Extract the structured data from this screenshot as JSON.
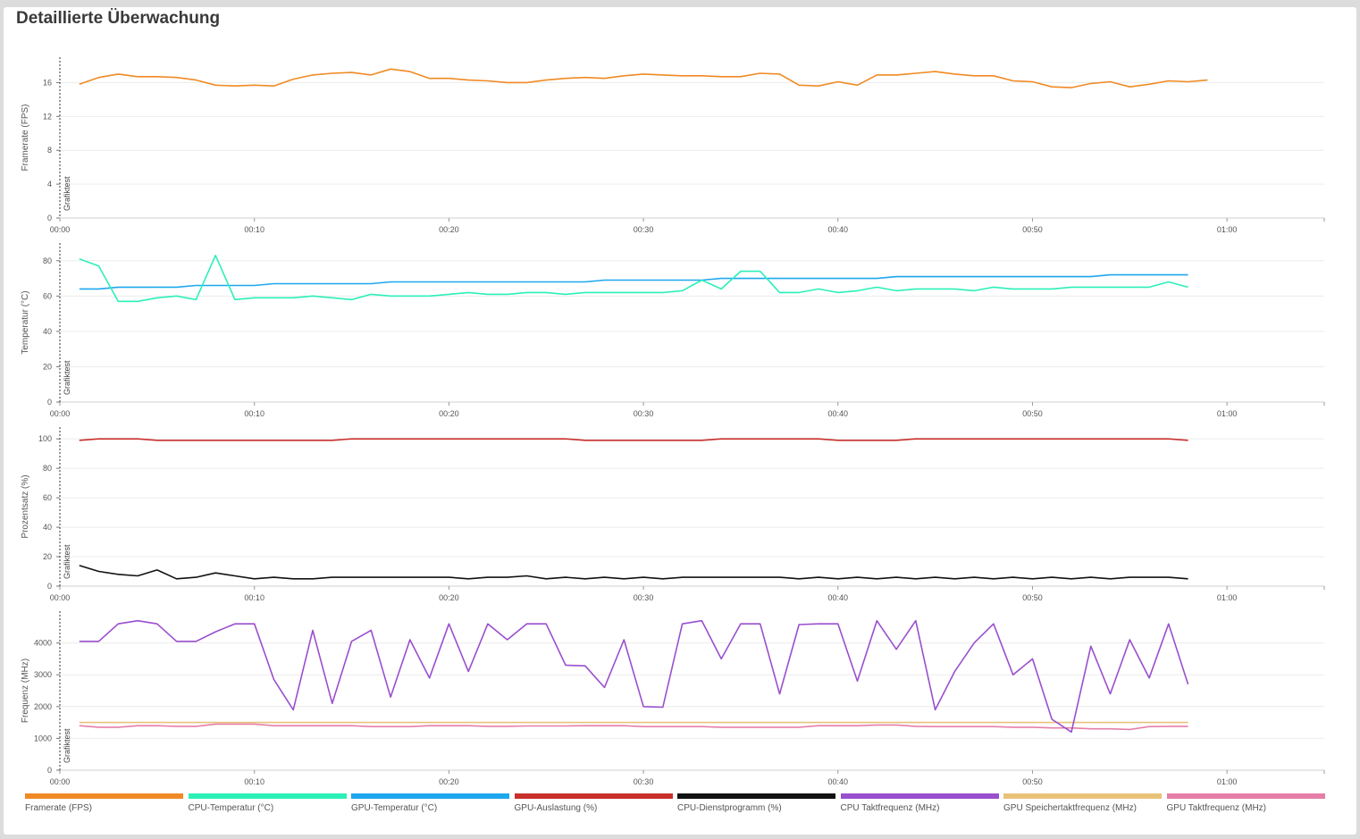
{
  "page": {
    "title": "Detaillierte Überwachung"
  },
  "chart_data": [
    {
      "type": "line",
      "ylabel": "Framerate (FPS)",
      "marker_label": "Grafiktest",
      "ylim": [
        0,
        19
      ],
      "yticks": [
        0,
        4,
        8,
        12,
        16
      ],
      "xlim": [
        0,
        65
      ],
      "xticks": [
        "00:00",
        "00:10",
        "00:20",
        "00:30",
        "00:40",
        "00:50",
        "01:00"
      ],
      "grid": true,
      "series": [
        {
          "name": "Framerate (FPS)",
          "color": "#f08a24",
          "x": [
            1,
            2,
            3,
            4,
            5,
            6,
            7,
            8,
            9,
            10,
            11,
            12,
            13,
            14,
            15,
            16,
            17,
            18,
            19,
            20,
            21,
            22,
            23,
            24,
            25,
            26,
            27,
            28,
            29,
            30,
            31,
            32,
            33,
            34,
            35,
            36,
            37,
            38,
            39,
            40,
            41,
            42,
            43,
            44,
            45,
            46,
            47,
            48,
            49,
            50,
            51,
            52,
            53,
            54,
            55,
            56,
            57,
            58,
            59
          ],
          "values": [
            15.8,
            16.6,
            17.0,
            16.7,
            16.7,
            16.6,
            16.3,
            15.7,
            15.6,
            15.7,
            15.6,
            16.4,
            16.9,
            17.1,
            17.2,
            16.9,
            17.6,
            17.3,
            16.5,
            16.5,
            16.3,
            16.2,
            16.0,
            16.0,
            16.3,
            16.5,
            16.6,
            16.5,
            16.8,
            17.0,
            16.9,
            16.8,
            16.8,
            16.7,
            16.7,
            17.1,
            17.0,
            15.7,
            15.6,
            16.1,
            15.7,
            16.9,
            16.9,
            17.1,
            17.3,
            17.0,
            16.8,
            16.8,
            16.2,
            16.1,
            15.5,
            15.4,
            15.9,
            16.1,
            15.5,
            15.8,
            16.2,
            16.1,
            16.3
          ]
        }
      ]
    },
    {
      "type": "line",
      "ylabel": "Temperatur (°C)",
      "marker_label": "Grafiktest",
      "ylim": [
        0,
        90
      ],
      "yticks": [
        0,
        20,
        40,
        60,
        80
      ],
      "xlim": [
        0,
        65
      ],
      "xticks": [
        "00:00",
        "00:10",
        "00:20",
        "00:30",
        "00:40",
        "00:50",
        "01:00"
      ],
      "grid": true,
      "series": [
        {
          "name": "GPU-Temperatur (°C)",
          "color": "#1ea7ee",
          "x": [
            1,
            2,
            3,
            4,
            5,
            6,
            7,
            8,
            9,
            10,
            11,
            12,
            13,
            14,
            15,
            16,
            17,
            18,
            19,
            20,
            21,
            22,
            23,
            24,
            25,
            26,
            27,
            28,
            29,
            30,
            31,
            32,
            33,
            34,
            35,
            36,
            37,
            38,
            39,
            40,
            41,
            42,
            43,
            44,
            45,
            46,
            47,
            48,
            49,
            50,
            51,
            52,
            53,
            54,
            55,
            56,
            57,
            58
          ],
          "values": [
            64,
            64,
            65,
            65,
            65,
            65,
            66,
            66,
            66,
            66,
            67,
            67,
            67,
            67,
            67,
            67,
            68,
            68,
            68,
            68,
            68,
            68,
            68,
            68,
            68,
            68,
            68,
            69,
            69,
            69,
            69,
            69,
            69,
            70,
            70,
            70,
            70,
            70,
            70,
            70,
            70,
            70,
            71,
            71,
            71,
            71,
            71,
            71,
            71,
            71,
            71,
            71,
            71,
            72,
            72,
            72,
            72,
            72
          ]
        },
        {
          "name": "CPU-Temperatur (°C)",
          "color": "#2bf0b8",
          "x": [
            1,
            2,
            3,
            4,
            5,
            6,
            7,
            8,
            9,
            10,
            11,
            12,
            13,
            14,
            15,
            16,
            17,
            18,
            19,
            20,
            21,
            22,
            23,
            24,
            25,
            26,
            27,
            28,
            29,
            30,
            31,
            32,
            33,
            34,
            35,
            36,
            37,
            38,
            39,
            40,
            41,
            42,
            43,
            44,
            45,
            46,
            47,
            48,
            49,
            50,
            51,
            52,
            53,
            54,
            55,
            56,
            57,
            58
          ],
          "values": [
            81,
            77,
            57,
            57,
            59,
            60,
            58,
            83,
            58,
            59,
            59,
            59,
            60,
            59,
            58,
            61,
            60,
            60,
            60,
            61,
            62,
            61,
            61,
            62,
            62,
            61,
            62,
            62,
            62,
            62,
            62,
            63,
            69,
            64,
            74,
            74,
            62,
            62,
            64,
            62,
            63,
            65,
            63,
            64,
            64,
            64,
            63,
            65,
            64,
            64,
            64,
            65,
            65,
            65,
            65,
            65,
            68,
            65
          ]
        }
      ]
    },
    {
      "type": "line",
      "ylabel": "Prozentsatz (%)",
      "marker_label": "Grafiktest",
      "ylim": [
        0,
        108
      ],
      "yticks": [
        0,
        20,
        40,
        60,
        80,
        100
      ],
      "xlim": [
        0,
        65
      ],
      "xticks": [
        "00:00",
        "00:10",
        "00:20",
        "00:30",
        "00:40",
        "00:50",
        "01:00"
      ],
      "grid": true,
      "series": [
        {
          "name": "GPU-Auslastung (%)",
          "color": "#c8302c",
          "x": [
            1,
            2,
            3,
            4,
            5,
            6,
            7,
            8,
            9,
            10,
            11,
            12,
            13,
            14,
            15,
            16,
            17,
            18,
            19,
            20,
            21,
            22,
            23,
            24,
            25,
            26,
            27,
            28,
            29,
            30,
            31,
            32,
            33,
            34,
            35,
            36,
            37,
            38,
            39,
            40,
            41,
            42,
            43,
            44,
            45,
            46,
            47,
            48,
            49,
            50,
            51,
            52,
            53,
            54,
            55,
            56,
            57,
            58
          ],
          "values": [
            99,
            100,
            100,
            100,
            99,
            99,
            99,
            99,
            99,
            99,
            99,
            99,
            99,
            99,
            100,
            100,
            100,
            100,
            100,
            100,
            100,
            100,
            100,
            100,
            100,
            100,
            99,
            99,
            99,
            99,
            99,
            99,
            99,
            100,
            100,
            100,
            100,
            100,
            100,
            99,
            99,
            99,
            99,
            100,
            100,
            100,
            100,
            100,
            100,
            100,
            100,
            100,
            100,
            100,
            100,
            100,
            100,
            99
          ]
        },
        {
          "name": "CPU-Dienstprogramm (%)",
          "color": "#111111",
          "x": [
            1,
            2,
            3,
            4,
            5,
            6,
            7,
            8,
            9,
            10,
            11,
            12,
            13,
            14,
            15,
            16,
            17,
            18,
            19,
            20,
            21,
            22,
            23,
            24,
            25,
            26,
            27,
            28,
            29,
            30,
            31,
            32,
            33,
            34,
            35,
            36,
            37,
            38,
            39,
            40,
            41,
            42,
            43,
            44,
            45,
            46,
            47,
            48,
            49,
            50,
            51,
            52,
            53,
            54,
            55,
            56,
            57,
            58
          ],
          "values": [
            14,
            10,
            8,
            7,
            11,
            5,
            6,
            9,
            7,
            5,
            6,
            5,
            5,
            6,
            6,
            6,
            6,
            6,
            6,
            6,
            5,
            6,
            6,
            7,
            5,
            6,
            5,
            6,
            5,
            6,
            5,
            6,
            6,
            6,
            6,
            6,
            6,
            5,
            6,
            5,
            6,
            5,
            6,
            5,
            6,
            5,
            6,
            5,
            6,
            5,
            6,
            5,
            6,
            5,
            6,
            6,
            6,
            5
          ]
        }
      ]
    },
    {
      "type": "line",
      "ylabel": "Frequenz (MHz)",
      "marker_label": "Grafiktest",
      "ylim": [
        0,
        5000
      ],
      "yticks": [
        0,
        1000,
        2000,
        3000,
        4000
      ],
      "xlim": [
        0,
        65
      ],
      "xticks": [
        "00:00",
        "00:10",
        "00:20",
        "00:30",
        "00:40",
        "00:50",
        "01:00"
      ],
      "grid": true,
      "series": [
        {
          "name": "GPU Speichertaktfrequenz (MHz)",
          "color": "#e9c27a",
          "x": [
            1,
            58
          ],
          "values": [
            1500,
            1500
          ]
        },
        {
          "name": "GPU Taktfrequenz (MHz)",
          "color": "#e67fa8",
          "x": [
            1,
            2,
            3,
            4,
            5,
            6,
            7,
            8,
            9,
            10,
            11,
            12,
            13,
            14,
            15,
            16,
            17,
            18,
            19,
            20,
            21,
            22,
            23,
            24,
            25,
            26,
            27,
            28,
            29,
            30,
            31,
            32,
            33,
            34,
            35,
            36,
            37,
            38,
            39,
            40,
            41,
            42,
            43,
            44,
            45,
            46,
            47,
            48,
            49,
            50,
            51,
            52,
            53,
            54,
            55,
            56,
            57,
            58
          ],
          "values": [
            1400,
            1350,
            1350,
            1400,
            1400,
            1380,
            1380,
            1450,
            1450,
            1450,
            1400,
            1400,
            1400,
            1400,
            1400,
            1370,
            1370,
            1370,
            1400,
            1400,
            1400,
            1380,
            1380,
            1390,
            1390,
            1390,
            1400,
            1400,
            1400,
            1370,
            1370,
            1370,
            1370,
            1350,
            1350,
            1350,
            1350,
            1350,
            1400,
            1400,
            1400,
            1420,
            1420,
            1380,
            1370,
            1370,
            1370,
            1370,
            1350,
            1350,
            1330,
            1330,
            1300,
            1300,
            1280,
            1370,
            1380,
            1380
          ]
        },
        {
          "name": "CPU Taktfrequenz (MHz)",
          "color": "#9a4fce",
          "x": [
            1,
            2,
            3,
            4,
            5,
            6,
            7,
            8,
            9,
            10,
            11,
            12,
            13,
            14,
            15,
            16,
            17,
            18,
            19,
            20,
            21,
            22,
            23,
            24,
            25,
            26,
            27,
            28,
            29,
            30,
            31,
            32,
            33,
            34,
            35,
            36,
            37,
            38,
            39,
            40,
            41,
            42,
            43,
            44,
            45,
            46,
            47,
            48,
            49,
            50,
            51,
            52,
            53,
            54,
            55,
            56,
            57,
            58
          ],
          "values": [
            4050,
            4050,
            4600,
            4700,
            4600,
            4050,
            4050,
            4350,
            4600,
            4600,
            2850,
            1900,
            4400,
            2100,
            4050,
            4400,
            2300,
            4100,
            2900,
            4600,
            3100,
            4600,
            4100,
            4600,
            4600,
            3300,
            3280,
            2600,
            4100,
            2000,
            1980,
            4600,
            4700,
            3500,
            4600,
            4600,
            2400,
            4580,
            4600,
            4600,
            2800,
            4700,
            3800,
            4700,
            1900,
            3100,
            4000,
            4600,
            3000,
            3500,
            1600,
            1200,
            3900,
            2400,
            4100,
            2900,
            4600,
            2700
          ]
        }
      ]
    }
  ],
  "legend": [
    {
      "label": "Framerate (FPS)",
      "color": "#f08a24"
    },
    {
      "label": "CPU-Temperatur (°C)",
      "color": "#2bf0b8"
    },
    {
      "label": "GPU-Temperatur (°C)",
      "color": "#1ea7ee"
    },
    {
      "label": "GPU-Auslastung (%)",
      "color": "#c8302c"
    },
    {
      "label": "CPU-Dienstprogramm (%)",
      "color": "#111111"
    },
    {
      "label": "CPU Taktfrequenz (MHz)",
      "color": "#9a4fce"
    },
    {
      "label": "GPU Speichertaktfrequenz (MHz)",
      "color": "#e9c27a"
    },
    {
      "label": "GPU Taktfrequenz (MHz)",
      "color": "#e67fa8"
    }
  ]
}
